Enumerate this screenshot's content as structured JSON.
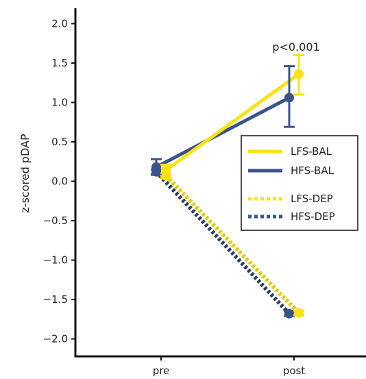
{
  "chart_data": {
    "type": "line",
    "title": "",
    "xlabel": "",
    "ylabel": "z-scored pDAP",
    "categories": [
      "pre",
      "post"
    ],
    "ylim": [
      -2.2,
      2.2
    ],
    "yticks": [
      -2.0,
      -1.5,
      -1.0,
      -0.5,
      0.0,
      0.5,
      1.0,
      1.5,
      2.0
    ],
    "ytick_labels": [
      "−2.0",
      "−1.5",
      "−1.0",
      "−0.5",
      "0.0",
      "0.5",
      "1.0",
      "1.5",
      "2.0"
    ],
    "grid": false,
    "legend_position": "right",
    "series": [
      {
        "name": "LFS-BAL",
        "color": "#fbe214",
        "style": "solid",
        "values": [
          0.14,
          1.36
        ],
        "err_low": [
          0.07,
          1.1
        ],
        "err_high": [
          0.21,
          1.6
        ]
      },
      {
        "name": "HFS-BAL",
        "color": "#3a5489",
        "style": "solid",
        "values": [
          0.18,
          1.06
        ],
        "err_low": [
          0.08,
          0.69
        ],
        "err_high": [
          0.28,
          1.46
        ]
      },
      {
        "name": "LFS-DEP",
        "color": "#fbe214",
        "style": "dotted",
        "values": [
          0.07,
          -1.67
        ],
        "err_low": [
          0.04,
          -1.7
        ],
        "err_high": [
          0.1,
          -1.64
        ]
      },
      {
        "name": "HFS-DEP",
        "color": "#3a5489",
        "style": "dotted",
        "values": [
          0.12,
          -1.68
        ],
        "err_low": [
          0.09,
          -1.71
        ],
        "err_high": [
          0.15,
          -1.65
        ]
      }
    ],
    "annotations": [
      {
        "text": "p<0.001",
        "category": "post",
        "y": 1.7
      }
    ]
  }
}
